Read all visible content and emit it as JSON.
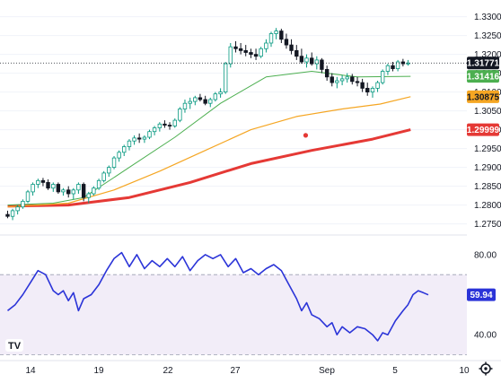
{
  "chart_data": [
    {
      "type": "candlestick",
      "title": "",
      "y_ticks": [
        "1.27500",
        "1.28000",
        "1.28500",
        "1.29000",
        "1.29500",
        "1.30000",
        "1.30500",
        "1.31000",
        "1.31500",
        "1.32000",
        "1.32500",
        "1.33000"
      ],
      "ylim": [
        1.273,
        1.333
      ],
      "x_ticks": [
        "14",
        "19",
        "22",
        "27",
        "Sep",
        "5",
        "10"
      ],
      "last_price": "1.31771",
      "colors": {
        "up": "#089981",
        "down": "#131722",
        "ma_short": "#4caf50",
        "ma_mid": "#f5a623",
        "ma_long": "#e53935"
      },
      "marker": {
        "x": 19.6,
        "y": 1.2985,
        "color": "#e53935"
      },
      "candles": [
        [
          0,
          1.2775,
          1.2785,
          1.2765,
          1.277
        ],
        [
          0.33,
          1.277,
          1.279,
          1.276,
          1.2785
        ],
        [
          0.66,
          1.2785,
          1.28,
          1.2775,
          1.2795
        ],
        [
          1,
          1.2795,
          1.2815,
          1.279,
          1.281
        ],
        [
          1.33,
          1.281,
          1.284,
          1.2805,
          1.2835
        ],
        [
          1.66,
          1.2835,
          1.286,
          1.2825,
          1.2855
        ],
        [
          2,
          1.2855,
          1.287,
          1.2845,
          1.2865
        ],
        [
          2.33,
          1.2865,
          1.2872,
          1.285,
          1.286
        ],
        [
          2.66,
          1.286,
          1.2868,
          1.284,
          1.2845
        ],
        [
          3,
          1.2845,
          1.286,
          1.2835,
          1.2855
        ],
        [
          3.33,
          1.2855,
          1.286,
          1.283,
          1.2835
        ],
        [
          3.66,
          1.2835,
          1.2845,
          1.2825,
          1.284
        ],
        [
          4,
          1.284,
          1.285,
          1.282,
          1.283
        ],
        [
          4.33,
          1.283,
          1.2845,
          1.2815,
          1.284
        ],
        [
          4.66,
          1.284,
          1.286,
          1.283,
          1.2855
        ],
        [
          5,
          1.2855,
          1.286,
          1.281,
          1.282
        ],
        [
          5.33,
          1.282,
          1.2835,
          1.2805,
          1.283
        ],
        [
          5.66,
          1.283,
          1.285,
          1.2825,
          1.2845
        ],
        [
          6,
          1.2845,
          1.287,
          1.284,
          1.2865
        ],
        [
          6.33,
          1.2865,
          1.289,
          1.286,
          1.2885
        ],
        [
          6.66,
          1.2885,
          1.2905,
          1.2875,
          1.29
        ],
        [
          7,
          1.29,
          1.293,
          1.2895,
          1.2925
        ],
        [
          7.33,
          1.2925,
          1.2945,
          1.2915,
          1.294
        ],
        [
          7.66,
          1.294,
          1.296,
          1.293,
          1.2955
        ],
        [
          8,
          1.2955,
          1.2975,
          1.2945,
          1.297
        ],
        [
          8.33,
          1.297,
          1.2985,
          1.296,
          1.2978
        ],
        [
          8.66,
          1.2978,
          1.299,
          1.2965,
          1.2975
        ],
        [
          9,
          1.2975,
          1.2985,
          1.2965,
          1.298
        ],
        [
          9.33,
          1.298,
          1.3,
          1.2975,
          1.2995
        ],
        [
          9.66,
          1.2995,
          1.301,
          1.2985,
          1.3005
        ],
        [
          10,
          1.3005,
          1.302,
          1.2995,
          1.3015
        ],
        [
          10.33,
          1.3015,
          1.3025,
          1.3005,
          1.3012
        ],
        [
          10.66,
          1.3012,
          1.302,
          1.3,
          1.301
        ],
        [
          11,
          1.301,
          1.303,
          1.3005,
          1.3025
        ],
        [
          11.33,
          1.3025,
          1.306,
          1.302,
          1.3055
        ],
        [
          11.66,
          1.3055,
          1.308,
          1.3045,
          1.307
        ],
        [
          12,
          1.307,
          1.3085,
          1.3055,
          1.3075
        ],
        [
          12.33,
          1.3075,
          1.309,
          1.3065,
          1.3085
        ],
        [
          12.66,
          1.3085,
          1.3095,
          1.3075,
          1.308
        ],
        [
          13,
          1.308,
          1.309,
          1.3065,
          1.307
        ],
        [
          13.33,
          1.307,
          1.3085,
          1.306,
          1.308
        ],
        [
          13.66,
          1.308,
          1.31,
          1.3075,
          1.3095
        ],
        [
          14,
          1.3095,
          1.311,
          1.3085,
          1.31
        ],
        [
          14.33,
          1.31,
          1.318,
          1.3095,
          1.3175
        ],
        [
          14.66,
          1.3175,
          1.323,
          1.3165,
          1.322
        ],
        [
          15,
          1.322,
          1.3235,
          1.3205,
          1.3215
        ],
        [
          15.33,
          1.3215,
          1.323,
          1.32,
          1.321
        ],
        [
          15.66,
          1.321,
          1.3225,
          1.3195,
          1.3205
        ],
        [
          16,
          1.3205,
          1.3215,
          1.319,
          1.32
        ],
        [
          16.33,
          1.32,
          1.3215,
          1.3185,
          1.3195
        ],
        [
          16.66,
          1.3195,
          1.322,
          1.319,
          1.3215
        ],
        [
          17,
          1.3215,
          1.324,
          1.3205,
          1.323
        ],
        [
          17.33,
          1.323,
          1.326,
          1.322,
          1.3255
        ],
        [
          17.66,
          1.3255,
          1.327,
          1.324,
          1.3262
        ],
        [
          18,
          1.3262,
          1.3268,
          1.323,
          1.324
        ],
        [
          18.33,
          1.324,
          1.3255,
          1.3215,
          1.3225
        ],
        [
          18.66,
          1.3225,
          1.324,
          1.32,
          1.321
        ],
        [
          19,
          1.321,
          1.3225,
          1.3185,
          1.3195
        ],
        [
          19.33,
          1.3195,
          1.3215,
          1.3175,
          1.318
        ],
        [
          19.66,
          1.318,
          1.32,
          1.3165,
          1.319
        ],
        [
          20,
          1.319,
          1.3205,
          1.317,
          1.3175
        ],
        [
          20.33,
          1.3175,
          1.3195,
          1.316,
          1.3185
        ],
        [
          20.66,
          1.3185,
          1.319,
          1.315,
          1.316
        ],
        [
          21,
          1.316,
          1.317,
          1.313,
          1.314
        ],
        [
          21.33,
          1.314,
          1.315,
          1.3115,
          1.3125
        ],
        [
          21.66,
          1.3125,
          1.314,
          1.311,
          1.313
        ],
        [
          22,
          1.313,
          1.3145,
          1.3118,
          1.3135
        ],
        [
          22.33,
          1.3135,
          1.315,
          1.3125,
          1.314
        ],
        [
          22.66,
          1.314,
          1.3148,
          1.312,
          1.3128
        ],
        [
          23,
          1.3128,
          1.314,
          1.3115,
          1.3125
        ],
        [
          23.33,
          1.3125,
          1.3135,
          1.31,
          1.311
        ],
        [
          23.66,
          1.311,
          1.3125,
          1.309,
          1.31
        ],
        [
          24,
          1.31,
          1.3115,
          1.3085,
          1.311
        ],
        [
          24.33,
          1.311,
          1.313,
          1.31,
          1.3125
        ],
        [
          24.66,
          1.3125,
          1.316,
          1.312,
          1.3155
        ],
        [
          25,
          1.3155,
          1.3175,
          1.3145,
          1.317
        ],
        [
          25.33,
          1.317,
          1.318,
          1.3155,
          1.3162
        ],
        [
          25.66,
          1.3162,
          1.3185,
          1.3155,
          1.318
        ],
        [
          26,
          1.318,
          1.3188,
          1.3168,
          1.3175
        ],
        [
          26.33,
          1.3175,
          1.3185,
          1.317,
          1.3177
        ]
      ],
      "ma_short": [
        [
          0,
          1.28
        ],
        [
          3,
          1.2805
        ],
        [
          5,
          1.282
        ],
        [
          8,
          1.29
        ],
        [
          11,
          1.298
        ],
        [
          14,
          1.307
        ],
        [
          17,
          1.314
        ],
        [
          20,
          1.3155
        ],
        [
          23,
          1.314
        ],
        [
          26.5,
          1.31416
        ]
      ],
      "ma_mid": [
        [
          0,
          1.2795
        ],
        [
          4,
          1.2805
        ],
        [
          7,
          1.284
        ],
        [
          10,
          1.289
        ],
        [
          13,
          1.2945
        ],
        [
          16,
          1.3
        ],
        [
          19,
          1.3035
        ],
        [
          22,
          1.3055
        ],
        [
          24.5,
          1.3068
        ],
        [
          26.5,
          1.30875
        ]
      ],
      "ma_long": [
        [
          0,
          1.2797
        ],
        [
          4,
          1.28
        ],
        [
          8,
          1.282
        ],
        [
          12,
          1.286
        ],
        [
          16,
          1.291
        ],
        [
          20,
          1.2945
        ],
        [
          24,
          1.2975
        ],
        [
          26.5,
          1.29999
        ]
      ],
      "price_labels": [
        {
          "key": "last",
          "text": "1.31771",
          "y": 1.31771,
          "bg": "#131722",
          "fg": "#ffffff"
        },
        {
          "key": "ma_short",
          "text": "1.31416",
          "y": 1.31416,
          "bg": "#4caf50",
          "fg": "#ffffff"
        },
        {
          "key": "ma_mid",
          "text": "1.30875",
          "y": 1.30875,
          "bg": "#f5a623",
          "fg": "#131722"
        },
        {
          "key": "ma_long",
          "text": "1.29999",
          "y": 1.29999,
          "bg": "#e53935",
          "fg": "#ffffff"
        }
      ]
    },
    {
      "type": "line",
      "title": "",
      "y_ticks": [
        "80.00",
        "40.00"
      ],
      "ylim": [
        28,
        88
      ],
      "band": [
        30,
        70
      ],
      "last_value": "59.94",
      "color": "#2b34d8",
      "values": [
        [
          0,
          52
        ],
        [
          0.5,
          55
        ],
        [
          1,
          60
        ],
        [
          1.5,
          66
        ],
        [
          2,
          72
        ],
        [
          2.5,
          70
        ],
        [
          3,
          62
        ],
        [
          3.33,
          60
        ],
        [
          3.66,
          62
        ],
        [
          4,
          57
        ],
        [
          4.33,
          61
        ],
        [
          4.66,
          52
        ],
        [
          5,
          58
        ],
        [
          5.5,
          60
        ],
        [
          6,
          65
        ],
        [
          6.5,
          72
        ],
        [
          7,
          78
        ],
        [
          7.5,
          81
        ],
        [
          8,
          74
        ],
        [
          8.5,
          80
        ],
        [
          9,
          73
        ],
        [
          9.5,
          77
        ],
        [
          10,
          74
        ],
        [
          10.5,
          78
        ],
        [
          11,
          74
        ],
        [
          11.5,
          79
        ],
        [
          12,
          72
        ],
        [
          12.5,
          77
        ],
        [
          13,
          80
        ],
        [
          13.5,
          78
        ],
        [
          14,
          80
        ],
        [
          14.5,
          74
        ],
        [
          15,
          78
        ],
        [
          15.5,
          71
        ],
        [
          16,
          73
        ],
        [
          16.5,
          70
        ],
        [
          17,
          73
        ],
        [
          17.5,
          75
        ],
        [
          18,
          72
        ],
        [
          18.5,
          65
        ],
        [
          19,
          58
        ],
        [
          19.33,
          52
        ],
        [
          19.66,
          56
        ],
        [
          20,
          50
        ],
        [
          20.5,
          48
        ],
        [
          21,
          44
        ],
        [
          21.33,
          46
        ],
        [
          21.66,
          40
        ],
        [
          22,
          44
        ],
        [
          22.5,
          41
        ],
        [
          23,
          44
        ],
        [
          23.5,
          43
        ],
        [
          24,
          40
        ],
        [
          24.33,
          37
        ],
        [
          24.66,
          41
        ],
        [
          25,
          40
        ],
        [
          25.5,
          47
        ],
        [
          26,
          52
        ],
        [
          26.33,
          55
        ],
        [
          26.66,
          60
        ],
        [
          27,
          62
        ],
        [
          27.33,
          61
        ],
        [
          27.66,
          59.94
        ]
      ]
    }
  ],
  "ui": {
    "logo": "TV",
    "settings_icon": "gear-icon"
  }
}
